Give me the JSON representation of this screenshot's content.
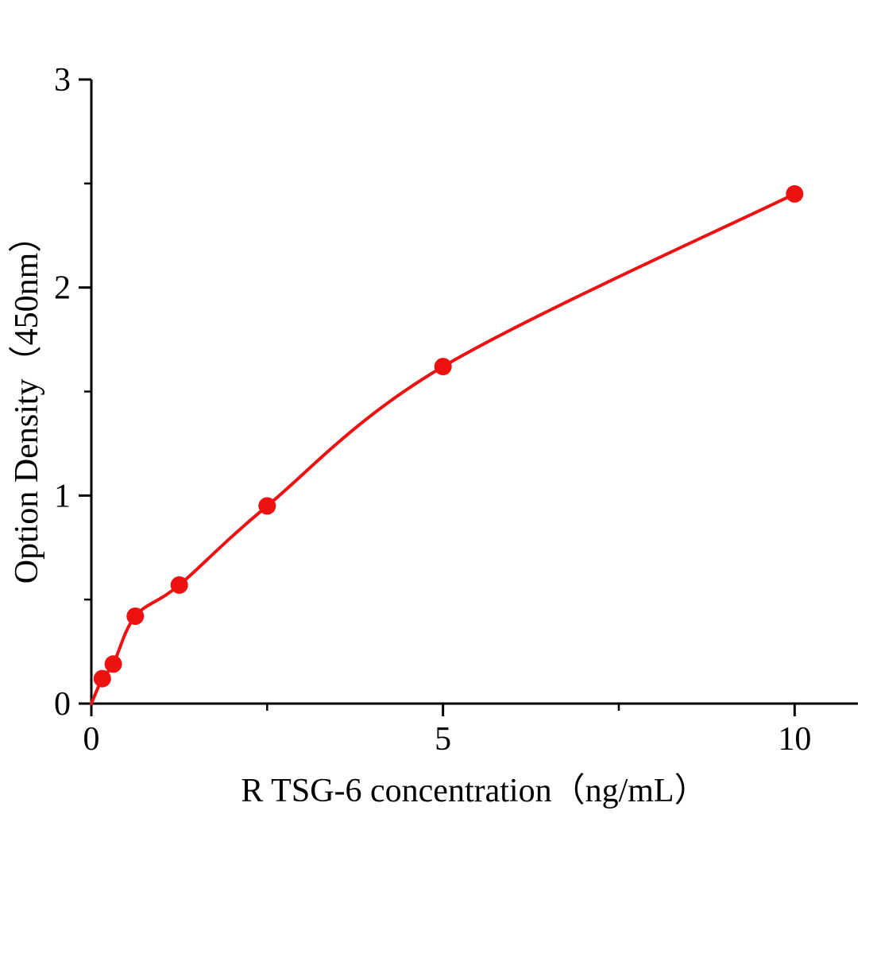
{
  "chart_data": {
    "type": "scatter",
    "title": "",
    "xlabel": "R TSG-6  concentration（ng/mL）",
    "ylabel": "Option Density（450nm）",
    "x": [
      0,
      0.156,
      0.312,
      0.625,
      1.25,
      2.5,
      5,
      10
    ],
    "y": [
      0,
      0.12,
      0.19,
      0.42,
      0.57,
      0.95,
      1.62,
      2.45
    ],
    "curve": "smooth-fit-through-points",
    "xlim": [
      0,
      10.9
    ],
    "ylim": [
      0,
      3
    ],
    "x_major_ticks": [
      0,
      5,
      10
    ],
    "x_minor_ticks": [
      2.5,
      7.5
    ],
    "y_major_ticks": [
      0,
      1,
      2,
      3
    ],
    "y_minor_ticks": [
      0.5,
      1.5,
      2.5
    ],
    "grid": false,
    "legend": null,
    "line_color": "#ee1111",
    "marker_color": "#ee1111",
    "axis_color": "#000000"
  }
}
